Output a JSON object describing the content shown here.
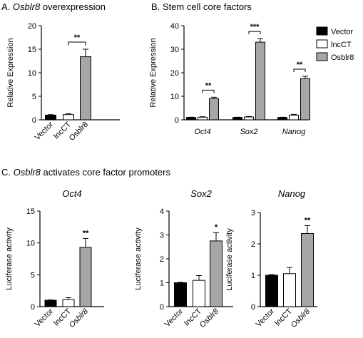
{
  "panels": {
    "A": {
      "label": "A.",
      "gene": "Osblr8",
      "rest": " overexpression"
    },
    "B": {
      "label": "B. Stem cell core factors"
    },
    "C": {
      "label": "C.",
      "gene": "Osblr8",
      "rest": " activates core factor promoters"
    }
  },
  "legend": {
    "items": [
      {
        "label": "Vector",
        "color": "#000000"
      },
      {
        "label": "lncCT",
        "color": "#ffffff"
      },
      {
        "label": "Osblr8",
        "color": "#a6a6a6"
      }
    ]
  },
  "chart_data": [
    {
      "id": "A",
      "type": "bar",
      "categories": [
        "Vector",
        "lncCT",
        "Osblr8"
      ],
      "values": [
        1.0,
        1.1,
        13.4
      ],
      "errors": [
        0.1,
        0.2,
        1.6
      ],
      "colors": [
        "#000000",
        "#ffffff",
        "#a6a6a6"
      ],
      "ylabel": "Relative Expression",
      "ylim": [
        0,
        20
      ],
      "yticks": [
        "0",
        "5",
        "10",
        "15",
        "20"
      ],
      "significance": [
        {
          "label": "**"
        }
      ]
    },
    {
      "id": "B",
      "type": "bar",
      "categories": [
        "Oct4",
        "Sox2",
        "Nanog"
      ],
      "series": [
        {
          "name": "Vector",
          "values": [
            1.0,
            1.0,
            1.0
          ],
          "errors": [
            0.1,
            0.1,
            0.1
          ]
        },
        {
          "name": "lncCT",
          "values": [
            1.1,
            1.2,
            2.0
          ],
          "errors": [
            0.2,
            0.2,
            0.3
          ]
        },
        {
          "name": "Osblr8",
          "values": [
            9.0,
            33.0,
            17.5
          ],
          "errors": [
            0.6,
            1.5,
            1.0
          ]
        }
      ],
      "ylabel": "Relative Expression",
      "ylim": [
        0,
        40
      ],
      "yticks": [
        "0",
        "10",
        "20",
        "30",
        "40"
      ],
      "significance": [
        {
          "label": "**"
        },
        {
          "label": "***"
        },
        {
          "label": "**"
        }
      ]
    },
    {
      "id": "C1",
      "type": "bar",
      "title": "Oct4",
      "categories": [
        "Vector",
        "lncCT",
        "Osblr8"
      ],
      "values": [
        1.0,
        1.1,
        9.3
      ],
      "errors": [
        0.05,
        0.3,
        1.4
      ],
      "ylabel": "Luciferase activity",
      "ylim": [
        0,
        15
      ],
      "yticks": [
        "0",
        "5",
        "10",
        "15"
      ],
      "significance": [
        {
          "label": "**"
        }
      ]
    },
    {
      "id": "C2",
      "type": "bar",
      "title": "Sox2",
      "categories": [
        "Vector",
        "lncCT",
        "Osblr8"
      ],
      "values": [
        1.0,
        1.1,
        2.75
      ],
      "errors": [
        0.02,
        0.2,
        0.35
      ],
      "ylabel": "Luciferase activity",
      "ylim": [
        0,
        4
      ],
      "yticks": [
        "0",
        "1",
        "2",
        "3",
        "4"
      ],
      "significance": [
        {
          "label": "*"
        }
      ]
    },
    {
      "id": "C3",
      "type": "bar",
      "title": "Nanog",
      "categories": [
        "Vector",
        "lncCT",
        "Osblr8"
      ],
      "values": [
        1.0,
        1.05,
        2.33
      ],
      "errors": [
        0.02,
        0.2,
        0.25
      ],
      "ylabel": "Luciferase activity",
      "ylim": [
        0,
        3
      ],
      "yticks": [
        "0",
        "1",
        "2",
        "3"
      ],
      "significance": [
        {
          "label": "**"
        }
      ]
    }
  ]
}
